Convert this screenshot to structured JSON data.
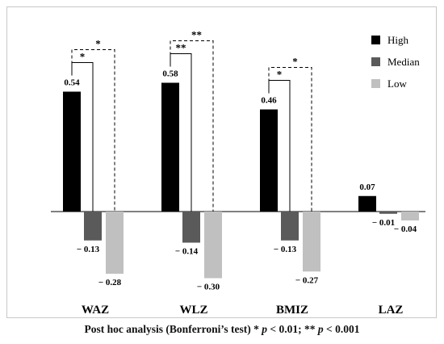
{
  "chart_data": {
    "type": "bar",
    "categories": [
      "WAZ",
      "WLZ",
      "BMIZ",
      "LAZ"
    ],
    "series": [
      {
        "name": "High",
        "color": "#000000",
        "values": [
          0.54,
          0.58,
          0.46,
          0.07
        ]
      },
      {
        "name": "Median",
        "color": "#5a5a5a",
        "values": [
          -0.13,
          -0.14,
          -0.13,
          -0.01
        ]
      },
      {
        "name": "Low",
        "color": "#c0c0c0",
        "values": [
          -0.28,
          -0.3,
          -0.27,
          -0.04
        ]
      }
    ],
    "value_labels": [
      [
        "0.54",
        "0.58",
        "0.46",
        "0.07"
      ],
      [
        "− 0.13",
        "− 0.14",
        "− 0.13",
        "− 0.01"
      ],
      [
        "− 0.28",
        "− 0.30",
        "− 0.27",
        "− 0.04"
      ]
    ],
    "legend_position": "top-right",
    "grid": false,
    "significance_annotations": [
      {
        "category": "WAZ",
        "comparison": "High vs Median",
        "label": "*"
      },
      {
        "category": "WAZ",
        "comparison": "High vs Low",
        "label": "*"
      },
      {
        "category": "WLZ",
        "comparison": "High vs Median",
        "label": "**"
      },
      {
        "category": "WLZ",
        "comparison": "High vs Low",
        "label": "**"
      },
      {
        "category": "BMIZ",
        "comparison": "High vs Median",
        "label": "*"
      },
      {
        "category": "BMIZ",
        "comparison": "High vs Low",
        "label": "*"
      }
    ]
  },
  "caption": {
    "prefix": "Post hoc analysis (Bonferroni’s test) * ",
    "p1": "p",
    "mid": " < 0.01; ** ",
    "p2": "p",
    "suffix": " < 0.001"
  }
}
